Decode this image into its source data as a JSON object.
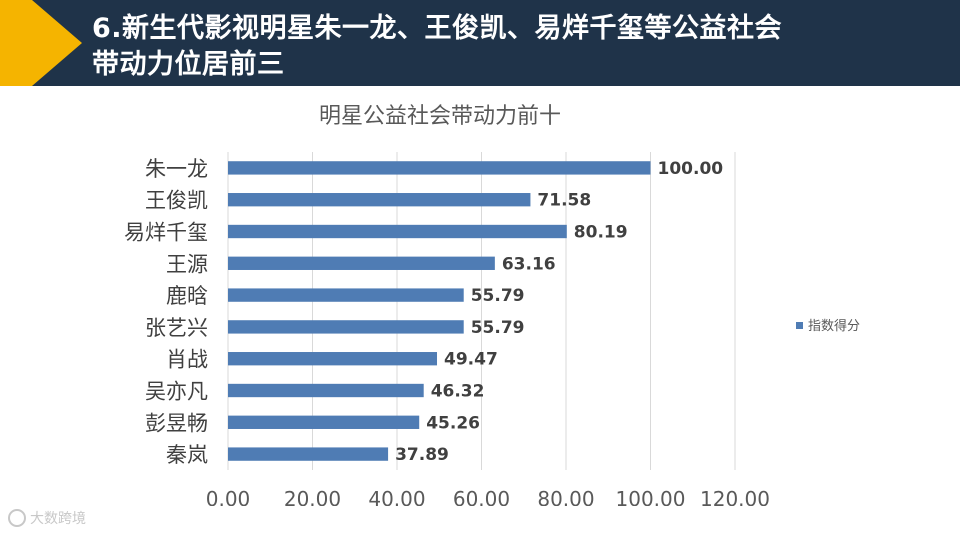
{
  "header": {
    "title_line1": "6.新生代影视明星朱一龙、王俊凯、易烊千玺等公益社会",
    "title_line2": "带动力位居前三"
  },
  "watermark": {
    "text": "大数跨境",
    "icon": "logo-icon"
  },
  "colors": {
    "header_bg": "#1f3349",
    "accent": "#f5b400",
    "bar": "#4f7cb4"
  },
  "chart_data": {
    "type": "bar",
    "orientation": "horizontal",
    "title": "明星公益社会带动力前十",
    "categories": [
      "朱一龙",
      "王俊凯",
      "易烊千玺",
      "王源",
      "鹿晗",
      "张艺兴",
      "肖战",
      "吴亦凡",
      "彭昱畅",
      "秦岚"
    ],
    "series": [
      {
        "name": "指数得分",
        "values": [
          100.0,
          71.58,
          80.19,
          63.16,
          55.79,
          55.79,
          49.47,
          46.32,
          45.26,
          37.89
        ]
      }
    ],
    "data_labels": [
      "100.00",
      "71.58",
      "80.19",
      "63.16",
      "55.79",
      "55.79",
      "49.47",
      "46.32",
      "45.26",
      "37.89"
    ],
    "xlim": [
      0,
      120
    ],
    "x_ticks": [
      "0.00",
      "20.00",
      "40.00",
      "60.00",
      "80.00",
      "100.00",
      "120.00"
    ],
    "grid": true,
    "legend_position": "right"
  }
}
